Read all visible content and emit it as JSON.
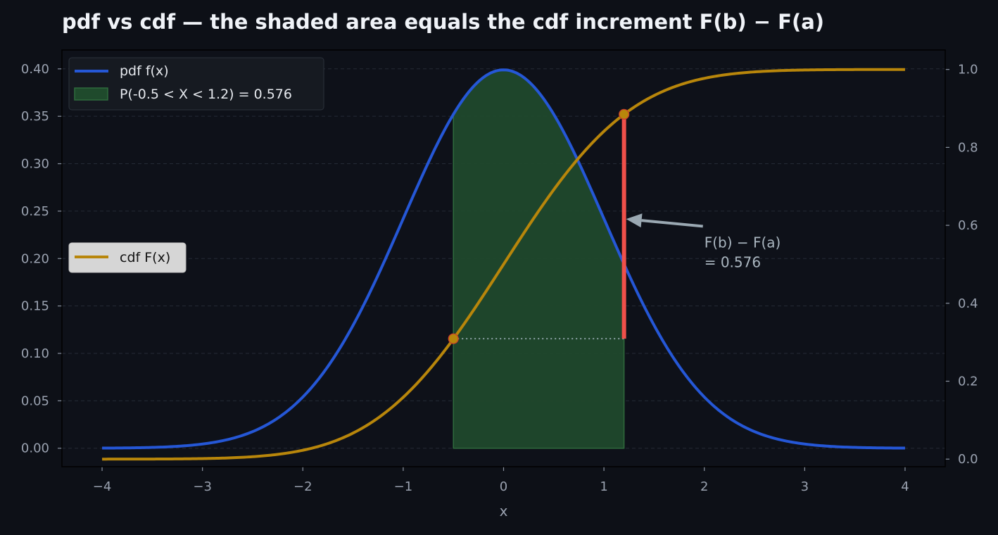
{
  "chart_data": {
    "type": "line",
    "title": "pdf vs cdf — the shaded area equals the cdf increment F(b) − F(a)",
    "xlabel": "x",
    "ylabel": "",
    "ylabel_right": "",
    "xlim": [
      -4.4,
      4.4
    ],
    "ylim": [
      -0.0195,
      0.4199
    ],
    "ylim_right": [
      -0.0195,
      1.05
    ],
    "grid": true,
    "x_ticks": [
      "−4",
      "−3",
      "−2",
      "−1",
      "0",
      "1",
      "2",
      "3",
      "4"
    ],
    "y_ticks": [
      "0.00",
      "0.05",
      "0.10",
      "0.15",
      "0.20",
      "0.25",
      "0.30",
      "0.35",
      "0.40"
    ],
    "y_ticks_right": [
      "0.0",
      "0.2",
      "0.4",
      "0.6",
      "0.8",
      "1.0"
    ],
    "series": [
      {
        "name": "pdf f(x)",
        "axis": "left",
        "color": "#2557d6",
        "distribution": "standard normal density",
        "x_range": [
          -4,
          4
        ],
        "key_points": [
          [
            -4,
            0.0001
          ],
          [
            -3,
            0.0044
          ],
          [
            -2,
            0.054
          ],
          [
            -1,
            0.242
          ],
          [
            -0.5,
            0.352
          ],
          [
            0,
            0.399
          ],
          [
            1,
            0.242
          ],
          [
            1.2,
            0.194
          ],
          [
            2,
            0.054
          ],
          [
            3,
            0.0044
          ],
          [
            4,
            0.0001
          ]
        ]
      },
      {
        "name": "cdf F(x)",
        "axis": "right",
        "color": "#b8860b",
        "distribution": "standard normal cumulative",
        "x_range": [
          -4,
          4
        ],
        "key_points": [
          [
            -4,
            0.0
          ],
          [
            -3,
            0.0013
          ],
          [
            -2,
            0.023
          ],
          [
            -1,
            0.159
          ],
          [
            -0.5,
            0.309
          ],
          [
            0,
            0.5
          ],
          [
            1,
            0.841
          ],
          [
            1.2,
            0.885
          ],
          [
            2,
            0.977
          ],
          [
            3,
            0.9987
          ],
          [
            4,
            1.0
          ]
        ]
      }
    ],
    "shaded_region": {
      "name": "P(-0.5 < X < 1.2) = 0.576",
      "a": -0.5,
      "b": 1.2,
      "color": "#1f4a2c"
    },
    "markers": [
      {
        "x": -0.5,
        "y": 0.309,
        "axis": "right"
      },
      {
        "x": 1.2,
        "y": 0.885,
        "axis": "right"
      }
    ],
    "increment_bar": {
      "x": 1.2,
      "from": 0.309,
      "to": 0.885,
      "color": "#f0504a"
    },
    "annotation": {
      "lines": [
        "F(b) − F(a)",
        "= 0.576"
      ],
      "arrow_target": {
        "x": 1.2,
        "y": 0.6,
        "axis": "right"
      },
      "text_anchor": {
        "x": 2.0,
        "y": 0.5,
        "axis": "right"
      }
    },
    "legends": [
      {
        "position": "upper-left",
        "entries": [
          "pdf f(x)",
          "P(-0.5 < X < 1.2) = 0.576"
        ]
      },
      {
        "position": "center-left",
        "entries": [
          "cdf F(x)"
        ]
      }
    ]
  }
}
